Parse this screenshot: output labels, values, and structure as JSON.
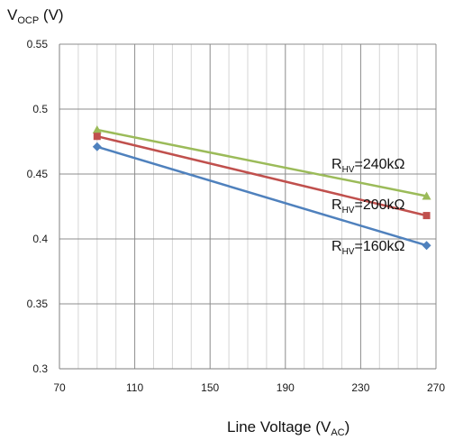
{
  "chart_data": {
    "type": "line",
    "ylabel_main": "V",
    "ylabel_sub": "OCP",
    "ylabel_unit": " (V)",
    "xlabel_main": "Line Voltage (V",
    "xlabel_sub": "AC",
    "xlabel_end": ")",
    "xlim": [
      70,
      270
    ],
    "ylim": [
      0.3,
      0.55
    ],
    "x_ticks": [
      70,
      110,
      150,
      190,
      230,
      270
    ],
    "x_tick_labels": [
      "70",
      "110",
      "150",
      "190",
      "230",
      "270"
    ],
    "y_ticks": [
      0.3,
      0.35,
      0.4,
      0.45,
      0.5,
      0.55
    ],
    "y_tick_labels": [
      "0.3",
      "0.35",
      "0.4",
      "0.45",
      "0.5",
      "0.55"
    ],
    "x_minor_step": 10,
    "grid": true,
    "series": [
      {
        "label_main": "R",
        "label_sub": "HV",
        "label_value": "=240kΩ",
        "color": "#9bbb59",
        "marker": "triangle",
        "x": [
          90,
          265
        ],
        "y": [
          0.484,
          0.433
        ]
      },
      {
        "label_main": "R",
        "label_sub": "HV",
        "label_value": "=200kΩ",
        "color": "#c0504d",
        "marker": "square",
        "x": [
          90,
          265
        ],
        "y": [
          0.479,
          0.418
        ]
      },
      {
        "label_main": "R",
        "label_sub": "HV",
        "label_value": "=160kΩ",
        "color": "#4f81bd",
        "marker": "diamond",
        "x": [
          90,
          265
        ],
        "y": [
          0.471,
          0.395
        ]
      }
    ]
  }
}
